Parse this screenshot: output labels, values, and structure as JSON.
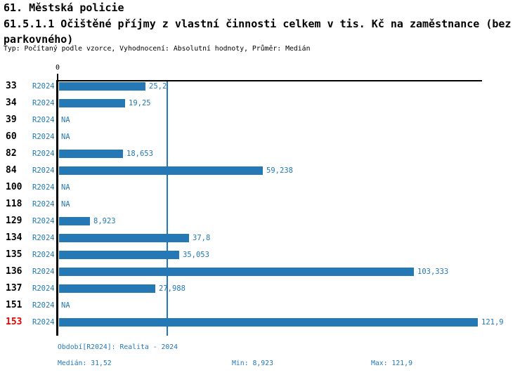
{
  "header": {
    "section_title": "61. Městská policie",
    "indicator_title": "61.5.1.1 Očištěné příjmy z vlastní činnosti celkem v tis. Kč na zaměstnance (bez parkovného)",
    "meta": "Typ: Počítaný podle vzorce, Vyhodnocení: Absolutní hodnoty, Průměr: Medián"
  },
  "chart_data": {
    "type": "bar",
    "orientation": "horizontal",
    "title": "61.5.1.1 Očištěné příjmy z vlastní činnosti celkem v tis. Kč na zaměstnance (bez parkovného)",
    "period_label": "R2024",
    "zero_tick_label": "0",
    "na_label": "NA",
    "categories": [
      "33",
      "34",
      "39",
      "60",
      "82",
      "84",
      "100",
      "118",
      "129",
      "134",
      "135",
      "136",
      "137",
      "151",
      "153"
    ],
    "series": [
      {
        "name": "R2024",
        "values": [
          25.2,
          19.25,
          null,
          null,
          18.653,
          59.238,
          null,
          null,
          8.923,
          37.8,
          35.053,
          103.333,
          27.988,
          null,
          121.9
        ]
      }
    ],
    "value_labels": [
      "25,2",
      "19,25",
      "NA",
      "NA",
      "18,653",
      "59,238",
      "NA",
      "NA",
      "8,923",
      "37,8",
      "35,053",
      "103,333",
      "27,988",
      "NA",
      "121,9"
    ],
    "highlighted_category": "153",
    "median_line_value": 31.52,
    "xlim": [
      0,
      123
    ],
    "grid": false,
    "legend": false,
    "bar_color": "#2378b5",
    "text_blue": "#2378b5",
    "highlight_color": "#e60000",
    "axis_color": "#000000"
  },
  "footer": {
    "period_info": "Období[R2024]: Realita - 2024",
    "median_label": "Medián: 31,52",
    "min_label": "Min: 8,923",
    "max_label": "Max: 121,9"
  }
}
